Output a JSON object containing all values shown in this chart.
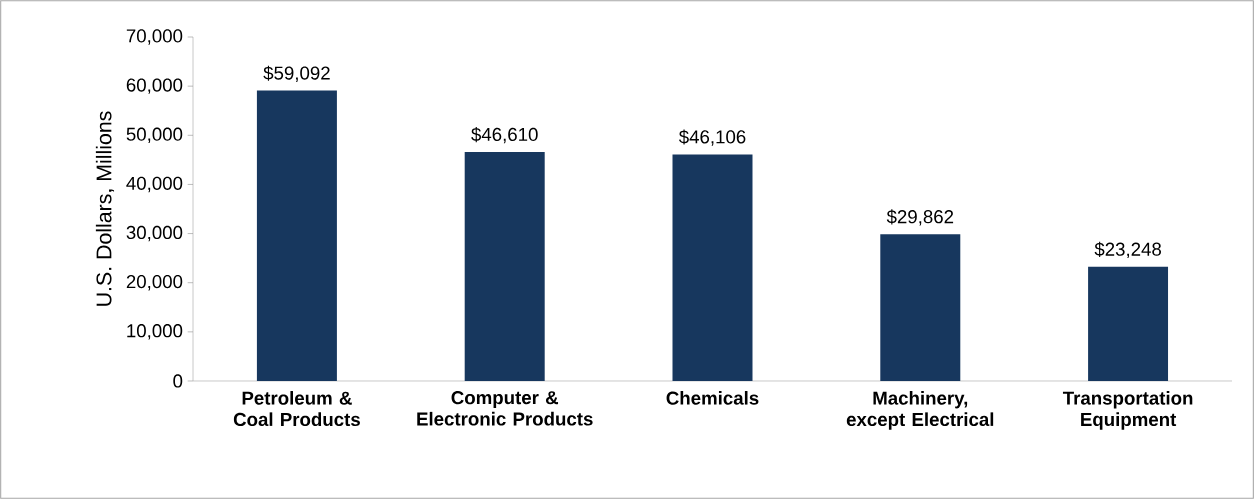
{
  "chart_data": {
    "type": "bar",
    "ylabel": "U.S. Dollars, Millions",
    "categories": [
      "Petroleum & Coal Products",
      "Computer & Electronic Products",
      "Chemicals",
      "Machinery, except Electrical",
      "Transportation Equipment"
    ],
    "values": [
      59092,
      46610,
      46106,
      29862,
      23248
    ],
    "value_labels": [
      "$59,092",
      "$46,610",
      "$46,106",
      "$29,862",
      "$23,248"
    ],
    "color": "#17375e",
    "ylim": [
      0,
      70000
    ],
    "yticks": [
      0,
      {
        "value": 10000,
        "label": "10,000"
      },
      {
        "value": 20000,
        "label": "20,000"
      },
      {
        "value": 30000,
        "label": "30,000"
      },
      {
        "value": 40000,
        "label": "40,000"
      },
      {
        "value": 50000,
        "label": "50,000"
      },
      {
        "value": 60000,
        "label": "60,000"
      },
      {
        "value": 70000,
        "label": "70,000"
      }
    ],
    "grid": false
  }
}
